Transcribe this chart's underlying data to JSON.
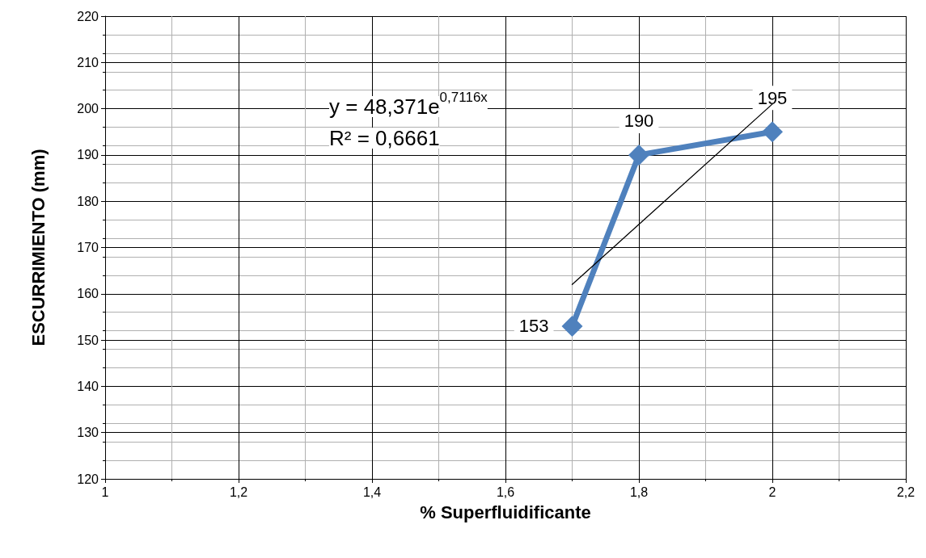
{
  "chart_data": {
    "type": "line",
    "xlabel": "% Superfluidificante",
    "ylabel": "ESCURRIMIENTO (mm)",
    "series": [
      {
        "color": "#4f81bd",
        "x": [
          1.7,
          1.8,
          2
        ],
        "values": [
          153,
          190,
          195
        ]
      },
      {
        "type": "line",
        "color": "#000000",
        "x": [
          1.7,
          2
        ],
        "values": [
          162,
          201
        ],
        "marker": "none",
        "data_labels": false
      }
    ],
    "xlim": [
      1,
      2.2
    ],
    "xticks": [
      1,
      {
        "value": 1.2,
        "label": "1,2"
      },
      {
        "value": 1.4,
        "label": "1,4"
      },
      {
        "value": 1.6,
        "label": "1,6"
      },
      {
        "value": 1.8,
        "label": "1,8"
      },
      2,
      {
        "value": 2.2,
        "label": "2,2"
      }
    ],
    "ylim": [
      120,
      220
    ],
    "yticks": [
      120,
      130,
      140,
      150,
      160,
      170,
      180,
      190,
      200,
      210,
      220
    ],
    "annotations": [
      "y = 48,371e$^{0,7116x}$",
      "R² = 0,6661"
    ],
    "grid": true,
    "marker": "diamond",
    "data_labels": true
  }
}
